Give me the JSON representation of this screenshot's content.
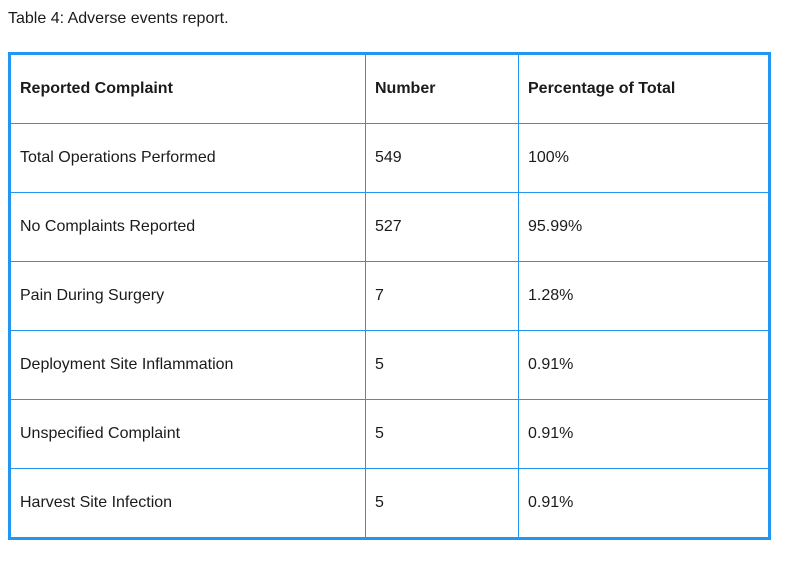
{
  "caption": "Table 4: Adverse events report.",
  "colors": {
    "table_border": "#2196F3",
    "text": "#1b1b1b",
    "background": "#ffffff"
  },
  "table": {
    "columns": [
      "Reported Complaint",
      "Number",
      "Percentage of Total"
    ],
    "rows": [
      [
        "Total Operations Performed",
        "549",
        "100%"
      ],
      [
        "No Complaints Reported",
        "527",
        "95.99%"
      ],
      [
        "Pain During Surgery",
        "7",
        "1.28%"
      ],
      [
        "Deployment Site Inflammation",
        "5",
        "0.91%"
      ],
      [
        "Unspecified Complaint",
        "5",
        "0.91%"
      ],
      [
        "Harvest Site Infection",
        "5",
        "0.91%"
      ]
    ]
  },
  "chart_data": {
    "type": "table",
    "title": "Table 4: Adverse events report.",
    "columns": [
      "Reported Complaint",
      "Number",
      "Percentage of Total"
    ],
    "rows": [
      {
        "reported_complaint": "Total Operations Performed",
        "number": 549,
        "percentage_of_total": "100%"
      },
      {
        "reported_complaint": "No Complaints Reported",
        "number": 527,
        "percentage_of_total": "95.99%"
      },
      {
        "reported_complaint": "Pain During Surgery",
        "number": 7,
        "percentage_of_total": "1.28%"
      },
      {
        "reported_complaint": "Deployment Site Inflammation",
        "number": 5,
        "percentage_of_total": "0.91%"
      },
      {
        "reported_complaint": "Unspecified Complaint",
        "number": 5,
        "percentage_of_total": "0.91%"
      },
      {
        "reported_complaint": "Harvest Site Infection",
        "number": 5,
        "percentage_of_total": "0.91%"
      }
    ]
  }
}
